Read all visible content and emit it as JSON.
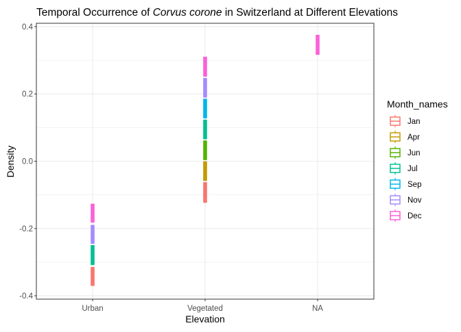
{
  "chart_data": {
    "type": "boxplot",
    "title": {
      "prefix": "Temporal Occurrence of ",
      "italic": "Corvus corone",
      "suffix": " in Switzerland at Different Elevations"
    },
    "xlabel": "Elevation",
    "ylabel": "Density",
    "categories": [
      "Urban",
      "Vegetated",
      "NA"
    ],
    "ylim": [
      -0.41,
      0.41
    ],
    "yticks": [
      -0.4,
      -0.2,
      0.0,
      0.2,
      0.4
    ],
    "ytick_labels": [
      "-0.4",
      "-0.2",
      "0.0",
      "0.2",
      "0.4"
    ],
    "grid": true,
    "legend": {
      "title": "Month_names",
      "position": "right",
      "entries": [
        {
          "label": "Jan",
          "color": "#F8766D"
        },
        {
          "label": "Apr",
          "color": "#C49A00"
        },
        {
          "label": "Jun",
          "color": "#53B400"
        },
        {
          "label": "Jul",
          "color": "#00C094"
        },
        {
          "label": "Sep",
          "color": "#00B6EB"
        },
        {
          "label": "Nov",
          "color": "#A58AFF"
        },
        {
          "label": "Dec",
          "color": "#FB61D7"
        }
      ]
    },
    "boxes": [
      {
        "category": "Urban",
        "month": "Jan",
        "color": "#F8766D",
        "low": -0.37,
        "high": -0.315
      },
      {
        "category": "Urban",
        "month": "Jul",
        "color": "#00C094",
        "low": -0.308,
        "high": -0.25
      },
      {
        "category": "Urban",
        "month": "Nov",
        "color": "#A58AFF",
        "low": -0.245,
        "high": -0.19
      },
      {
        "category": "Urban",
        "month": "Dec",
        "color": "#FB61D7",
        "low": -0.182,
        "high": -0.127
      },
      {
        "category": "Vegetated",
        "month": "Jan",
        "color": "#F8766D",
        "low": -0.123,
        "high": -0.063
      },
      {
        "category": "Vegetated",
        "month": "Apr",
        "color": "#C49A00",
        "low": -0.058,
        "high": -0.001
      },
      {
        "category": "Vegetated",
        "month": "Jun",
        "color": "#53B400",
        "low": 0.004,
        "high": 0.061
      },
      {
        "category": "Vegetated",
        "month": "Jul",
        "color": "#00C094",
        "low": 0.066,
        "high": 0.123
      },
      {
        "category": "Vegetated",
        "month": "Sep",
        "color": "#00B6EB",
        "low": 0.128,
        "high": 0.185
      },
      {
        "category": "Vegetated",
        "month": "Nov",
        "color": "#A58AFF",
        "low": 0.19,
        "high": 0.247
      },
      {
        "category": "Vegetated",
        "month": "Dec",
        "color": "#FB61D7",
        "low": 0.252,
        "high": 0.31
      },
      {
        "category": "NA",
        "month": "Dec",
        "color": "#FB61D7",
        "low": 0.317,
        "high": 0.375
      }
    ]
  }
}
